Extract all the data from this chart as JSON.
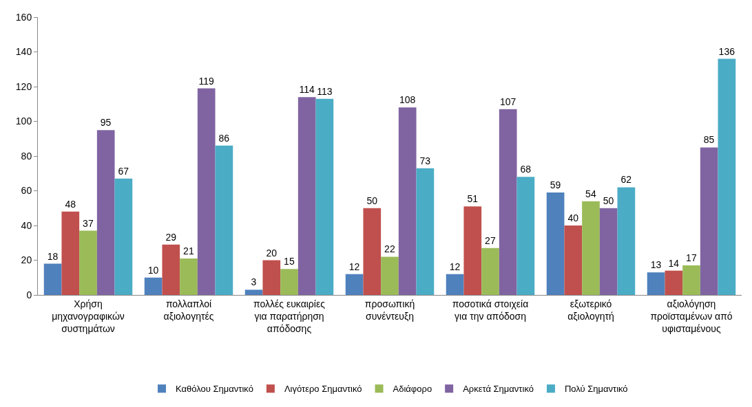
{
  "chart_data": {
    "type": "bar",
    "categories": [
      "Χρήση μηχανογραφικών συστημάτων",
      "πολλαπλοί αξιολογητές",
      "πολλές ευκαιρίες για παρατήρηση απόδοσης",
      "προσωπική συνέντευξη",
      "ποσοτικά στοιχεία για την απόδοση",
      "εξωτερικό αξιολογητή",
      "αξιολόγηση προϊσταμένων από υφισταμένους"
    ],
    "series": [
      {
        "name": "Καθόλου Σημαντικό",
        "color": "#4f81bd",
        "values": [
          18,
          10,
          3,
          12,
          12,
          59,
          13
        ]
      },
      {
        "name": "Λιγότερο Σημαντικό",
        "color": "#c0504d",
        "values": [
          48,
          29,
          20,
          50,
          51,
          40,
          14
        ]
      },
      {
        "name": "Αδιάφορο",
        "color": "#9bbb59",
        "values": [
          37,
          21,
          15,
          22,
          27,
          54,
          17
        ]
      },
      {
        "name": "Αρκετά Σημαντικό",
        "color": "#8064a2",
        "values": [
          95,
          119,
          114,
          108,
          107,
          50,
          85
        ]
      },
      {
        "name": "Πολύ Σημαντικό",
        "color": "#4bacc6",
        "values": [
          67,
          86,
          113,
          73,
          68,
          62,
          136
        ]
      }
    ],
    "ylim": [
      0,
      160
    ],
    "yticks": [
      0,
      20,
      40,
      60,
      80,
      100,
      120,
      140,
      160
    ],
    "grid": false,
    "legend": "bottom",
    "data_labels": true
  }
}
